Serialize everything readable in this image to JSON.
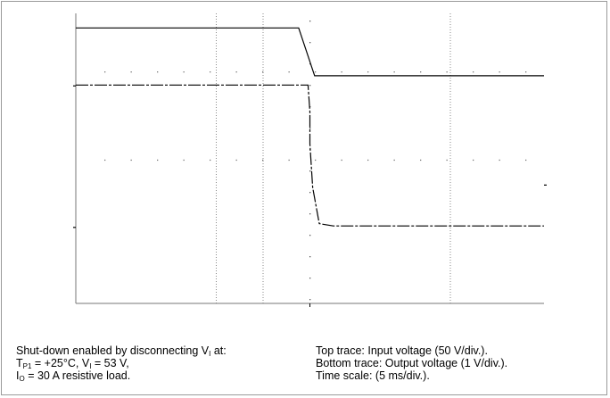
{
  "chart_data": {
    "type": "line",
    "title": "",
    "xlabel": "",
    "ylabel": "",
    "x_unit": "ms",
    "xlim": [
      0,
      50
    ],
    "grid": true,
    "series": [
      {
        "name": "Input voltage",
        "points": [
          [
            0,
            0.95
          ],
          [
            23.8,
            0.95
          ],
          [
            25.5,
            0.785
          ],
          [
            50,
            0.785
          ]
        ]
      },
      {
        "name": "Output voltage",
        "points": [
          [
            0,
            0.753
          ],
          [
            24.8,
            0.753
          ],
          [
            25,
            0.66
          ],
          [
            25.0,
            0.55
          ],
          [
            25.3,
            0.4
          ],
          [
            26.0,
            0.275
          ],
          [
            27.5,
            0.267
          ],
          [
            50,
            0.267
          ]
        ]
      }
    ]
  },
  "caption": {
    "left_line1_a": "Shut-down enabled by disconnecting V",
    "left_line1_sub": "I",
    "left_line1_b": " at:",
    "left_line2_a": "T",
    "left_line2_sub1": "P1",
    "left_line2_b": " = +25°C, V",
    "left_line2_sub2": "I",
    "left_line2_c": " = 53 V,",
    "left_line3_a": "I",
    "left_line3_sub": "O",
    "left_line3_b": " = 30 A resistive load.",
    "right_line1": "Top trace: Input voltage (50 V/div.).",
    "right_line2": "Bottom trace: Output voltage (1 V/div.).",
    "right_line3": "Time scale: (5 ms/div.)."
  }
}
